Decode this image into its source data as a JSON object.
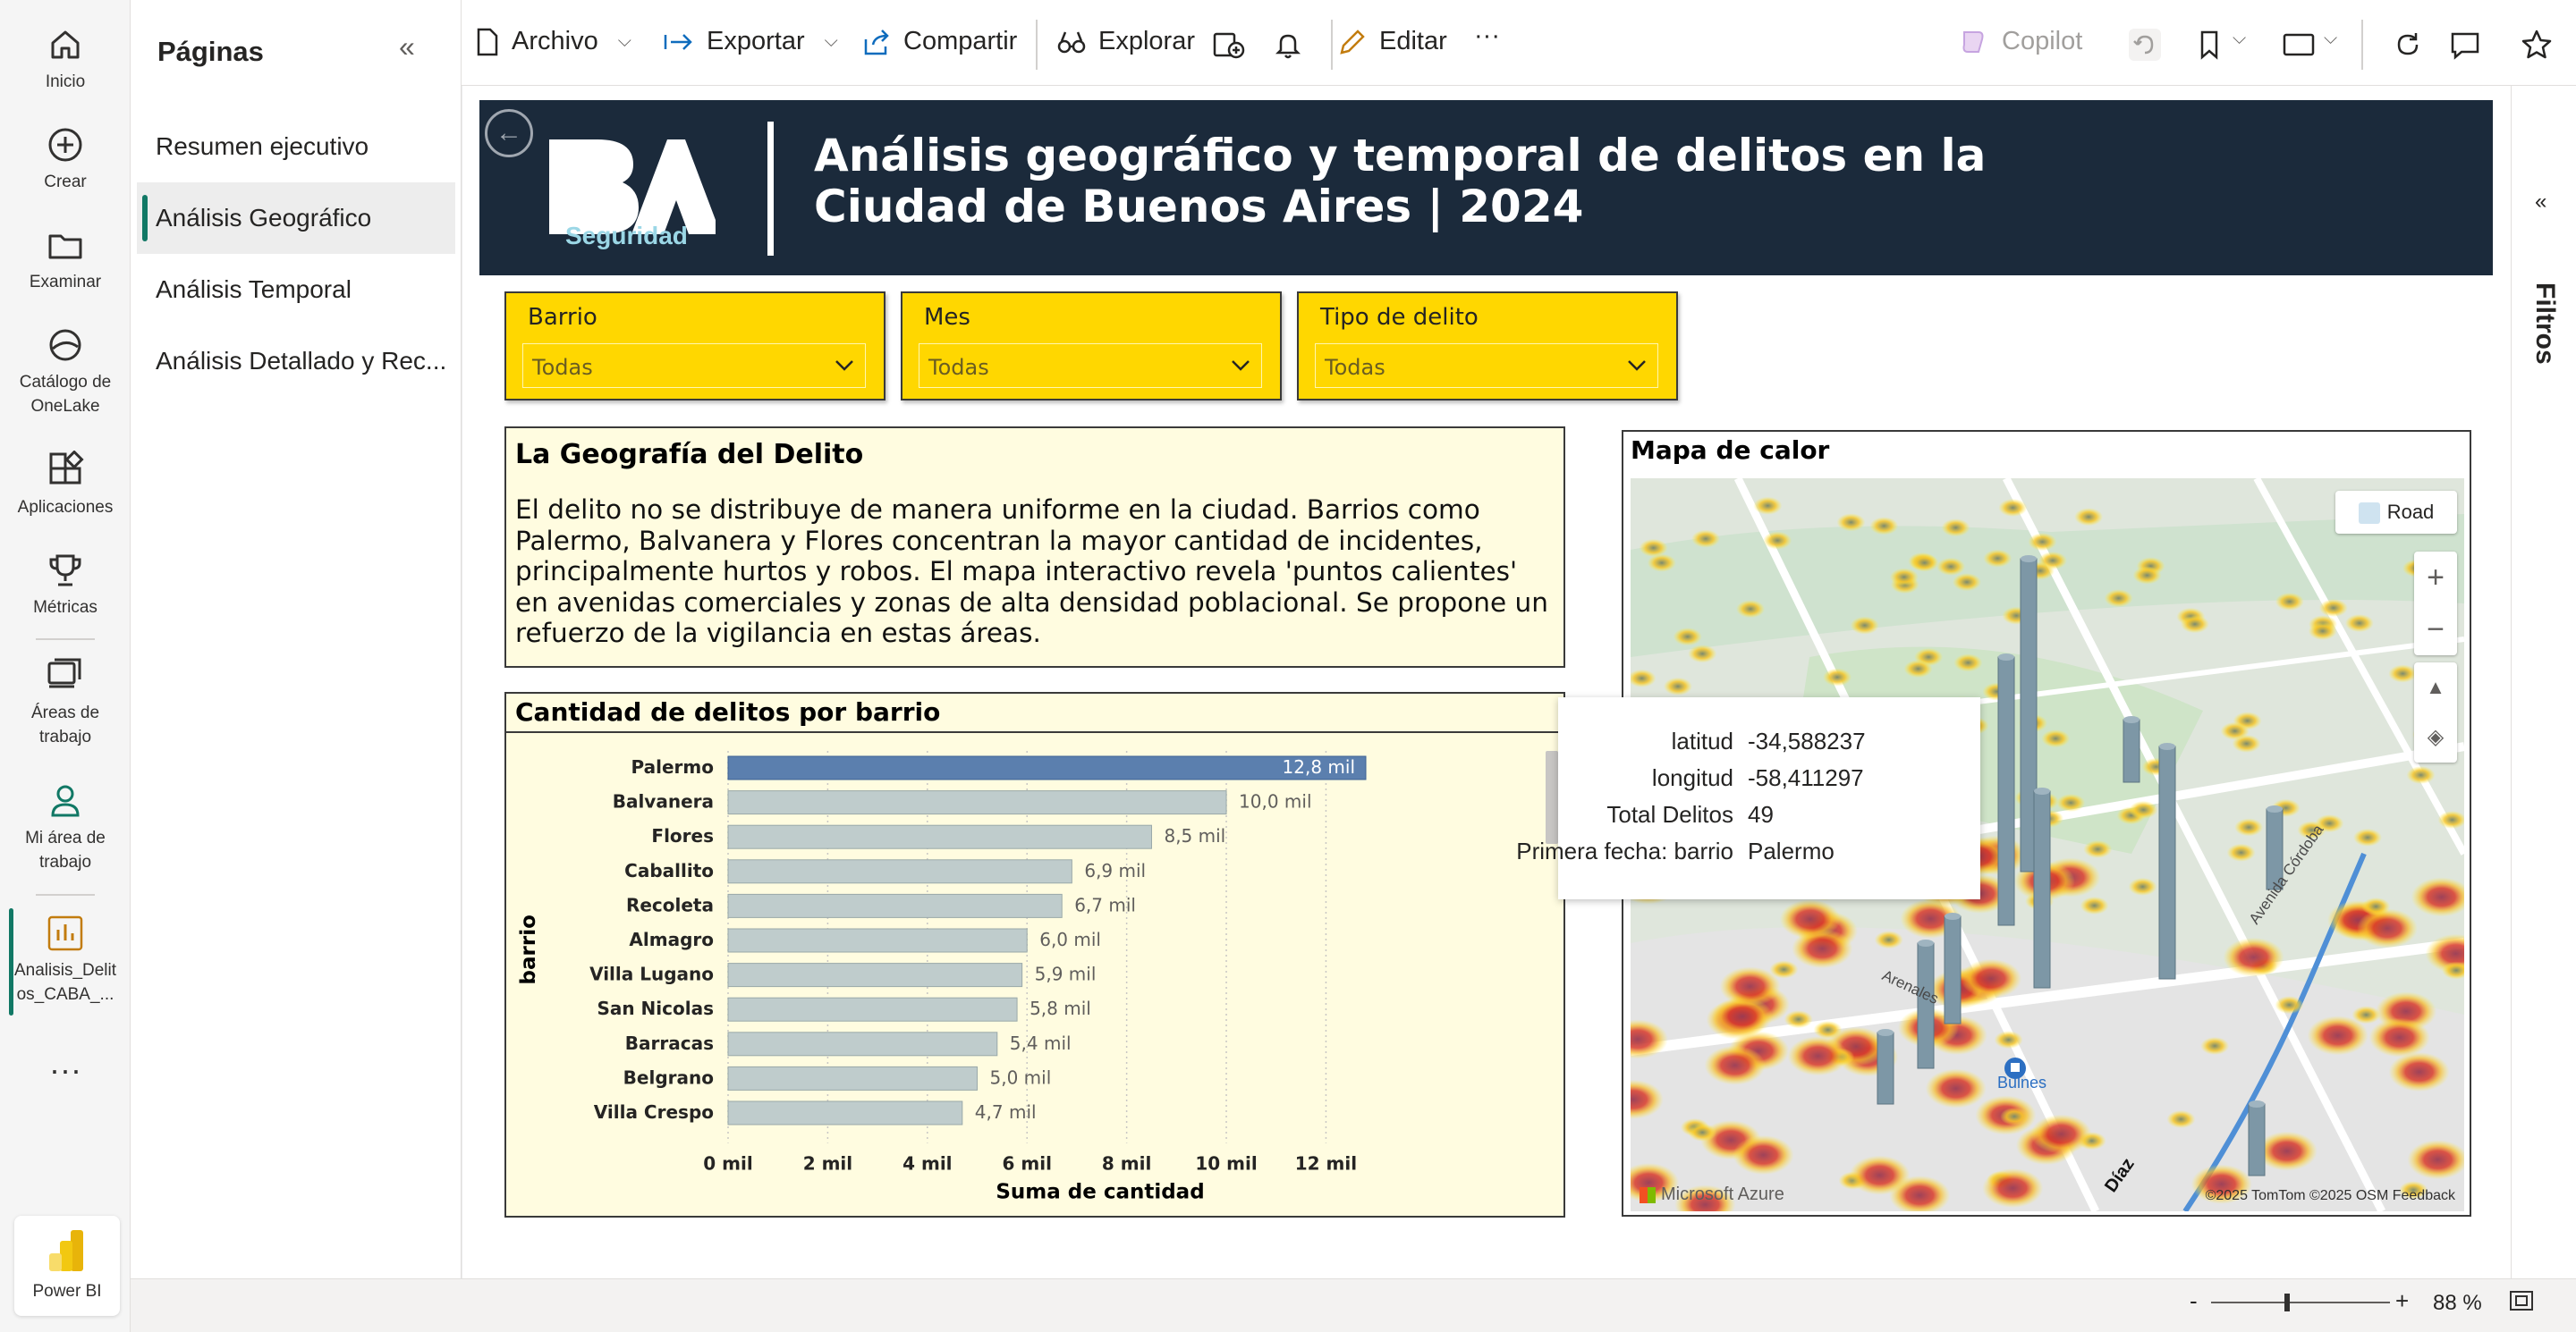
{
  "rail": {
    "items": [
      {
        "label": "Inicio",
        "icon": "home-icon"
      },
      {
        "label": "Crear",
        "icon": "create-icon"
      },
      {
        "label": "Examinar",
        "icon": "browse-icon"
      },
      {
        "label": "Catálogo de OneLake",
        "icon": "onelake-icon"
      },
      {
        "label": "Aplicaciones",
        "icon": "apps-icon"
      },
      {
        "label": "Métricas",
        "icon": "trophy-icon"
      },
      {
        "label": "Áreas de trabajo",
        "icon": "workspaces-icon"
      },
      {
        "label": "Mi área de trabajo",
        "icon": "person-icon"
      },
      {
        "label": "Analisis_Delitos_CABA_...",
        "icon": "report-icon"
      }
    ],
    "more": "···",
    "brand": "Power BI"
  },
  "pages": {
    "title": "Páginas",
    "items": [
      "Resumen ejecutivo",
      "Análisis Geográfico",
      "Análisis Temporal",
      "Análisis Detallado y Rec..."
    ],
    "active_index": 1
  },
  "toolbar": {
    "archivo": "Archivo",
    "exportar": "Exportar",
    "compartir": "Compartir",
    "explorar": "Explorar",
    "editar": "Editar",
    "more": "···",
    "copilot": "Copilot"
  },
  "report": {
    "title": "Análisis geográfico y temporal de delitos en la Ciudad de Buenos Aires | 2024",
    "logo_text": "BA",
    "logo_sub": "Seguridad"
  },
  "slicers": [
    {
      "label": "Barrio",
      "value": "Todas"
    },
    {
      "label": "Mes",
      "value": "Todas"
    },
    {
      "label": "Tipo de delito",
      "value": "Todas"
    }
  ],
  "textbox": {
    "heading": "La Geografía del Delito",
    "body": "El delito no se distribuye de manera uniforme en la ciudad. Barrios como Palermo, Balvanera y Flores concentran la mayor cantidad de incidentes, principalmente hurtos y robos. El mapa interactivo revela 'puntos calientes' en avenidas comerciales y zonas de alta densidad poblacional. Se propone un refuerzo de la vigilancia en estas áreas."
  },
  "chart_data": {
    "type": "bar",
    "orientation": "horizontal",
    "title": "Cantidad de delitos por barrio",
    "xlabel": "Suma de cantidad",
    "ylabel": "barrio",
    "categories": [
      "Palermo",
      "Balvanera",
      "Flores",
      "Caballito",
      "Recoleta",
      "Almagro",
      "Villa Lugano",
      "San Nicolas",
      "Barracas",
      "Belgrano",
      "Villa Crespo"
    ],
    "values": [
      12.8,
      10.0,
      8.5,
      6.9,
      6.7,
      6.0,
      5.9,
      5.8,
      5.4,
      5.0,
      4.7
    ],
    "value_labels": [
      "12,8 mil",
      "10,0 mil",
      "8,5 mil",
      "6,9 mil",
      "6,7 mil",
      "6,0 mil",
      "5,9 mil",
      "5,8 mil",
      "5,4 mil",
      "5,0 mil",
      "4,7 mil"
    ],
    "ticks": [
      "0 mil",
      "2 mil",
      "4 mil",
      "6 mil",
      "8 mil",
      "10 mil",
      "12 mil"
    ],
    "xlim": [
      0,
      13.5
    ],
    "highlight_index": 0,
    "colors": {
      "highlight": "#5b7fae",
      "bar": "#bfcccc",
      "grid": "#c8c6c4"
    },
    "grid": true
  },
  "map": {
    "title": "Mapa de calor",
    "style_button": "Road",
    "attribution": "©2025 TomTom  ©2025 OSM  Feedback",
    "brand": "Microsoft Azure",
    "labels": [
      "Bulnes",
      "Díaz",
      "Avenida Córdoba",
      "Arenales"
    ]
  },
  "tooltip": {
    "rows": [
      {
        "key": "latitud",
        "value": "-34,588237"
      },
      {
        "key": "longitud",
        "value": "-58,411297"
      },
      {
        "key": "Total Delitos",
        "value": "49"
      },
      {
        "key": "Primera fecha: barrio",
        "value": "Palermo"
      }
    ]
  },
  "filters": {
    "label": "Filtros"
  },
  "status": {
    "zoom": "88 %",
    "minus": "-",
    "plus": "+"
  }
}
